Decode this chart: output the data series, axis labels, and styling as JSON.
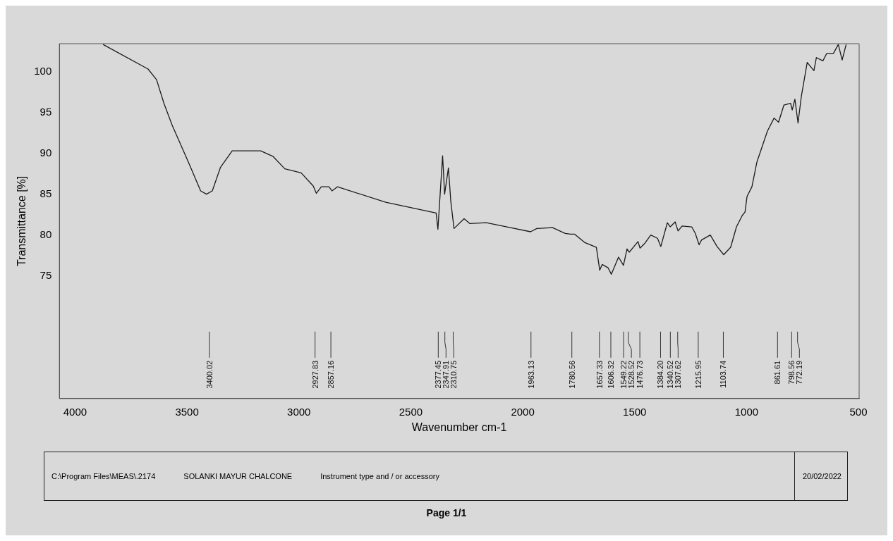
{
  "chart_data": {
    "type": "line",
    "xlabel": "Wavenumber cm-1",
    "ylabel": "Transmittance [%]",
    "xlim": [
      4070,
      497
    ],
    "xticks": [
      4000,
      3500,
      3000,
      2500,
      2000,
      1500,
      1000,
      500
    ],
    "ylim": [
      60,
      103.4
    ],
    "yticks": [
      75,
      80,
      85,
      90,
      95,
      100
    ],
    "grid": false,
    "legend": false,
    "marker": "none",
    "line_style": "solid",
    "color": "#1a1a1a",
    "x": [
      3875,
      3674,
      3636,
      3603,
      3566,
      3495,
      3439,
      3413,
      3387,
      3350,
      3298,
      3171,
      3115,
      3063,
      2990,
      2936,
      2922,
      2900,
      2866,
      2852,
      2828,
      2612,
      2387,
      2379,
      2358,
      2349,
      2332,
      2321,
      2307,
      2262,
      2236,
      2163,
      2055,
      1965,
      1937,
      1867,
      1810,
      1787,
      1768,
      1724,
      1671,
      1656,
      1645,
      1619,
      1604,
      1572,
      1550,
      1534,
      1524,
      1485,
      1476,
      1454,
      1428,
      1398,
      1383,
      1354,
      1341,
      1319,
      1306,
      1288,
      1245,
      1229,
      1212,
      1201,
      1162,
      1132,
      1102,
      1071,
      1045,
      1019,
      1007,
      998,
      976,
      954,
      907,
      877,
      857,
      833,
      803,
      796,
      784,
      770,
      755,
      729,
      699,
      688,
      659,
      642,
      612,
      590,
      573,
      555
    ],
    "values": [
      103.3,
      100.3,
      99.0,
      96.1,
      93.4,
      89.0,
      85.4,
      85.0,
      85.4,
      88.3,
      90.3,
      90.3,
      89.6,
      88.1,
      87.6,
      86.0,
      85.1,
      85.9,
      85.9,
      85.4,
      85.9,
      84.0,
      82.7,
      80.7,
      89.7,
      85.0,
      88.2,
      84.0,
      80.8,
      82.0,
      81.4,
      81.5,
      80.9,
      80.4,
      80.8,
      80.9,
      80.2,
      80.1,
      80.1,
      79.1,
      78.5,
      75.7,
      76.4,
      76.0,
      75.2,
      77.3,
      76.3,
      78.3,
      77.9,
      79.2,
      78.4,
      79.0,
      80.0,
      79.6,
      78.6,
      81.5,
      81.0,
      81.6,
      80.5,
      81.1,
      81.0,
      80.2,
      78.8,
      79.4,
      80.0,
      78.6,
      77.6,
      78.5,
      81.0,
      82.4,
      82.8,
      84.7,
      85.9,
      88.9,
      92.7,
      94.3,
      93.8,
      95.9,
      96.1,
      95.3,
      96.6,
      93.7,
      97.0,
      101.1,
      100.1,
      101.7,
      101.3,
      102.2,
      102.2,
      103.3,
      101.4,
      103.3
    ],
    "ref_lines": [
      {
        "axis": "x",
        "value": 3400.02,
        "label": "3400.02"
      },
      {
        "axis": "x",
        "value": 2927.83,
        "label": "2927.83"
      },
      {
        "axis": "x",
        "value": 2857.16,
        "label": "2857.16"
      },
      {
        "axis": "x",
        "value": 2377.45,
        "label": "2377.45"
      },
      {
        "axis": "x",
        "value": 2347.91,
        "label": "2347.91"
      },
      {
        "axis": "x",
        "value": 2310.75,
        "label": "2310.75"
      },
      {
        "axis": "x",
        "value": 1963.13,
        "label": "1963.13"
      },
      {
        "axis": "x",
        "value": 1780.56,
        "label": "1780.56"
      },
      {
        "axis": "x",
        "value": 1657.33,
        "label": "1657.33"
      },
      {
        "axis": "x",
        "value": 1606.32,
        "label": "1606.32"
      },
      {
        "axis": "x",
        "value": 1549.22,
        "label": "1549.22"
      },
      {
        "axis": "x",
        "value": 1528.52,
        "label": "1528.52"
      },
      {
        "axis": "x",
        "value": 1476.73,
        "label": "1476.73"
      },
      {
        "axis": "x",
        "value": 1384.2,
        "label": "1384.20"
      },
      {
        "axis": "x",
        "value": 1340.52,
        "label": "1340.52"
      },
      {
        "axis": "x",
        "value": 1307.62,
        "label": "1307.62"
      },
      {
        "axis": "x",
        "value": 1215.95,
        "label": "1215.95"
      },
      {
        "axis": "x",
        "value": 1103.74,
        "label": "1103.74"
      },
      {
        "axis": "x",
        "value": 861.61,
        "label": "861.61"
      },
      {
        "axis": "x",
        "value": 798.56,
        "label": "798.56"
      },
      {
        "axis": "x",
        "value": 772.19,
        "label": "772.19"
      }
    ],
    "annotations": [
      "C:\\Program Files\\MEAS\\.2174",
      "SOLANKI MAYUR CHALCONE",
      "Instrument type and / or accessory",
      "20/02/2022",
      "Page 1/1"
    ]
  }
}
